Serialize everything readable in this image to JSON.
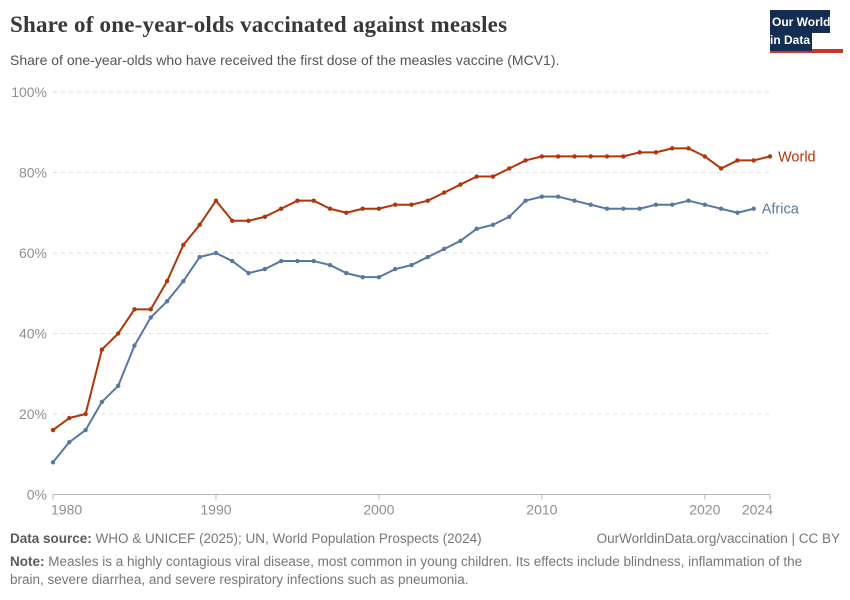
{
  "header": {
    "title": "Share of one-year-olds vaccinated against measles",
    "subtitle": "Share of one-year-olds who have received the first dose of the measles vaccine (MCV1).",
    "logo": {
      "line1": "Our World",
      "line2": "in Data"
    }
  },
  "colors": {
    "world": "#b13507",
    "africa": "#5878a3",
    "grid": "#dedede",
    "axis": "#b6b6b6",
    "tick_label": "#8f8f8f",
    "title": "#383838",
    "subtitle": "#555555",
    "footer": "#777777",
    "logo_bg": "#132e52",
    "logo_bar": "#cb342c"
  },
  "chart_data": {
    "type": "line",
    "title": "Share of one-year-olds vaccinated against measles",
    "xlabel": "",
    "ylabel": "",
    "xlim": [
      1980,
      2024
    ],
    "ylim": [
      0,
      100
    ],
    "x_ticks": [
      1980,
      1990,
      2000,
      2010,
      2020,
      2024
    ],
    "y_ticks": [
      0,
      20,
      40,
      60,
      80,
      100
    ],
    "y_tick_suffix": "%",
    "grid": "horizontal-dashed",
    "legend_position": "line-end-labels",
    "series": [
      {
        "name": "World",
        "color_key": "world",
        "x_start": 1980,
        "values": [
          16,
          19,
          20,
          36,
          40,
          46,
          46,
          53,
          62,
          67,
          73,
          68,
          68,
          69,
          71,
          73,
          73,
          71,
          70,
          71,
          71,
          72,
          72,
          73,
          75,
          77,
          79,
          79,
          81,
          83,
          84,
          84,
          84,
          84,
          84,
          84,
          85,
          85,
          86,
          86,
          84,
          81,
          83,
          83,
          84
        ]
      },
      {
        "name": "Africa",
        "color_key": "africa",
        "x_start": 1980,
        "values": [
          8,
          13,
          16,
          23,
          27,
          37,
          44,
          48,
          53,
          59,
          60,
          58,
          55,
          56,
          58,
          58,
          58,
          57,
          55,
          54,
          54,
          56,
          57,
          59,
          61,
          63,
          66,
          67,
          69,
          73,
          74,
          74,
          73,
          72,
          71,
          71,
          71,
          72,
          72,
          73,
          72,
          71,
          70,
          71
        ]
      }
    ]
  },
  "footer": {
    "datasource_label": "Data source:",
    "datasource_text": " WHO & UNICEF (2025); UN, World Population Prospects (2024)",
    "link_text": "OurWorldinData.org/vaccination | CC BY",
    "note_label": "Note:",
    "note_text": " Measles is a highly contagious viral disease, most common in young children. Its effects include blindness, inflammation of the brain, severe diarrhea, and severe respiratory infections such as pneumonia."
  }
}
